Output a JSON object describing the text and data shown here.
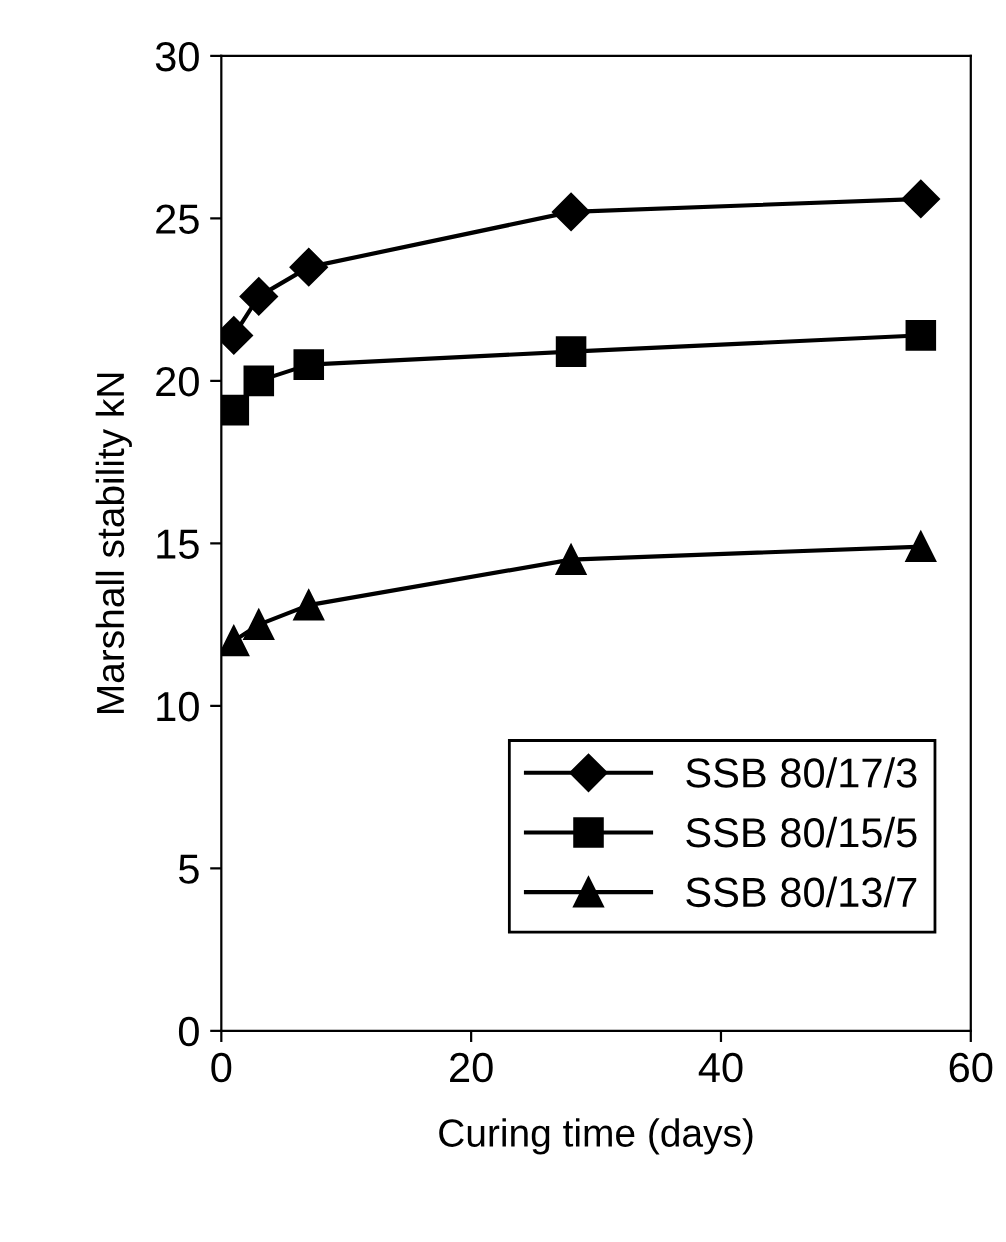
{
  "chart_data": {
    "type": "line",
    "xlabel": "Curing time (days)",
    "ylabel": "Marshall stability kN",
    "xlim": [
      0,
      60
    ],
    "xticks": [
      0,
      20,
      40,
      60
    ],
    "ylim": [
      0,
      30
    ],
    "yticks": [
      0,
      5,
      10,
      15,
      20,
      25,
      30
    ],
    "grid": false,
    "legend": "bottom right",
    "line_style": "solid",
    "x": [
      1,
      3,
      7,
      28,
      56
    ],
    "series": [
      {
        "name": "SSB 80/17/3",
        "color": "#000000",
        "marker": "diamond",
        "values": [
          21.4,
          22.6,
          23.5,
          25.2,
          25.6
        ]
      },
      {
        "name": "SSB 80/15/5",
        "color": "#000000",
        "marker": "square",
        "values": [
          19.1,
          20.0,
          20.5,
          20.9,
          21.4
        ]
      },
      {
        "name": "SSB 80/13/7",
        "color": "#000000",
        "marker": "triangle",
        "values": [
          12.0,
          12.5,
          13.1,
          14.5,
          14.9
        ]
      }
    ]
  }
}
